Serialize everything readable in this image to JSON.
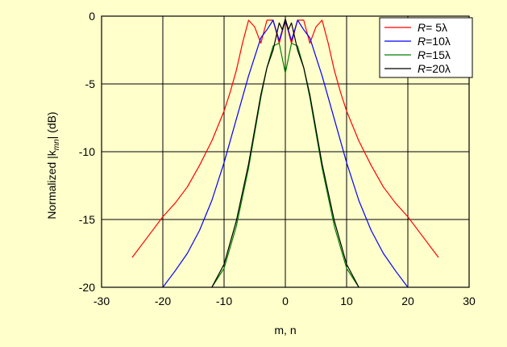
{
  "chart_data": {
    "type": "line",
    "xlabel": "m, n",
    "ylabel": "Normalized |k_mn| (dB)",
    "ylabel_parts": {
      "prefix": "Normalized |k",
      "sub": "mn",
      "suffix": "| (dB)"
    },
    "xlim": [
      -30,
      30
    ],
    "ylim": [
      -20,
      0
    ],
    "xticks": [
      -30,
      -20,
      -10,
      0,
      10,
      20,
      30
    ],
    "yticks": [
      0,
      -5,
      -10,
      -15,
      -20
    ],
    "grid": true,
    "legend_position": "top-right",
    "series": [
      {
        "name": "R= 5λ",
        "legend": {
          "italic": "R",
          "rest": "= 5λ"
        },
        "color": "#ff0000",
        "x": [
          -25,
          -22,
          -20,
          -18,
          -16,
          -14,
          -12,
          -10,
          -9,
          -8,
          -7,
          -6,
          -5,
          -4,
          -3,
          -2,
          -1,
          0,
          1,
          2,
          3,
          4,
          5,
          6,
          7,
          8,
          9,
          10,
          12,
          14,
          16,
          18,
          20,
          22,
          25
        ],
        "y": [
          -17.8,
          -16.0,
          -14.8,
          -13.8,
          -12.6,
          -11.0,
          -9.2,
          -7.0,
          -5.6,
          -4.0,
          -2.0,
          -0.3,
          -0.8,
          -2.0,
          -0.3,
          -0.3,
          -2.0,
          -0.3,
          -2.0,
          -0.3,
          -0.3,
          -2.0,
          -0.8,
          -0.3,
          -2.0,
          -4.0,
          -5.6,
          -7.0,
          -9.2,
          -11.0,
          -12.6,
          -13.8,
          -14.8,
          -16.0,
          -17.8
        ]
      },
      {
        "name": "R=10λ",
        "legend": {
          "italic": "R",
          "rest": "=10λ"
        },
        "color": "#0000ff",
        "x": [
          -20,
          -18,
          -16,
          -14,
          -12,
          -10,
          -8,
          -6,
          -5,
          -4,
          -3,
          -2,
          -1,
          0,
          1,
          2,
          3,
          4,
          5,
          6,
          8,
          10,
          12,
          14,
          16,
          18,
          20
        ],
        "y": [
          -20.0,
          -18.8,
          -17.5,
          -15.8,
          -13.6,
          -10.8,
          -7.6,
          -4.4,
          -3.0,
          -1.6,
          -1.0,
          -0.3,
          -1.8,
          -0.3,
          -1.8,
          -0.3,
          -1.0,
          -1.6,
          -3.0,
          -4.4,
          -7.6,
          -10.8,
          -13.6,
          -15.8,
          -17.5,
          -18.8,
          -20.0
        ]
      },
      {
        "name": "R=15λ",
        "legend": {
          "italic": "R",
          "rest": "=15λ"
        },
        "color": "#008000",
        "x": [
          -12,
          -10,
          -8,
          -6,
          -4,
          -3,
          -2,
          -1,
          0,
          1,
          2,
          3,
          4,
          6,
          8,
          10,
          12
        ],
        "y": [
          -20.0,
          -18.6,
          -15.5,
          -11.2,
          -6.0,
          -3.8,
          -2.2,
          -2.0,
          -4.2,
          -2.0,
          -2.2,
          -3.8,
          -6.0,
          -11.2,
          -15.5,
          -18.6,
          -20.0
        ]
      },
      {
        "name": "R=20λ",
        "legend": {
          "italic": "R",
          "rest": "=20λ"
        },
        "color": "#000000",
        "x": [
          -12,
          -10,
          -8,
          -6,
          -4,
          -3,
          -2,
          -1,
          -0.5,
          0,
          0.5,
          1,
          2,
          3,
          4,
          6,
          8,
          10,
          12
        ],
        "y": [
          -20.0,
          -18.3,
          -15.1,
          -10.9,
          -5.8,
          -3.8,
          -2.5,
          -0.5,
          -1.0,
          -0.2,
          -1.0,
          -0.5,
          -2.5,
          -3.8,
          -5.8,
          -10.9,
          -15.1,
          -18.3,
          -20.0
        ]
      }
    ]
  }
}
